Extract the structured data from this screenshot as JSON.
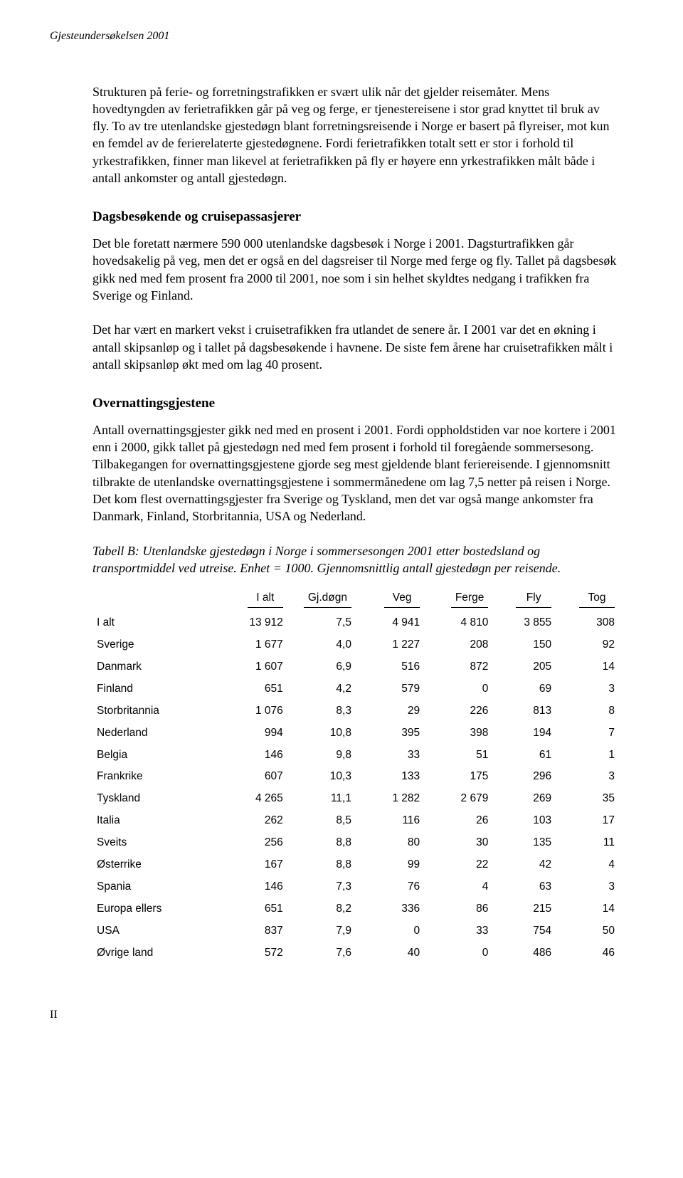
{
  "header": {
    "title": "Gjesteundersøkelsen 2001"
  },
  "body": {
    "p1": "Strukturen på ferie- og forretningstrafikken er svært ulik når det gjelder reisemåter. Mens hovedtyngden av ferietrafikken går på veg og ferge, er tjenestereisene i stor grad knyttet til bruk av fly. To av tre utenlandske gjestedøgn blant forretningsreisende i Norge er basert på flyreiser, mot kun en femdel av de ferierelaterte gjestedøgnene. Fordi ferietrafikken totalt sett er stor i forhold til yrkestrafikken, finner man likevel at ferietrafikken på fly er høyere enn yrkestrafikken målt både i antall ankomster og antall gjestedøgn.",
    "h1": "Dagsbesøkende og cruisepassasjerer",
    "p2": "Det ble foretatt nærmere 590 000 utenlandske dagsbesøk i Norge i 2001. Dagsturtrafikken går hovedsakelig på veg, men det er også en del dagsreiser til Norge med ferge og fly. Tallet på dagsbesøk gikk ned med fem prosent fra 2000 til 2001, noe som i sin helhet skyldtes nedgang i trafikken fra Sverige og Finland.",
    "p3": "Det har vært en markert vekst i cruisetrafikken fra utlandet de senere år. I 2001 var det en økning i antall skipsanløp og i tallet på dagsbesøkende i havnene. De siste fem årene har cruisetrafikken målt i antall skipsanløp økt med om lag 40 prosent.",
    "h2": "Overnattingsgjestene",
    "p4": "Antall overnattingsgjester gikk ned med en prosent i 2001. Fordi oppholdstiden var noe kortere i 2001 enn i 2000, gikk tallet på gjestedøgn ned med fem prosent i forhold til foregående sommersesong. Tilbakegangen for overnattingsgjestene gjorde seg mest gjeldende blant feriereisende. I gjennomsnitt tilbrakte de utenlandske overnattingsgjestene i sommermånedene om lag 7,5 netter på reisen i Norge. Det kom flest overnattingsgjester fra Sverige og Tyskland, men det var også mange ankomster fra Danmark, Finland, Storbritannia, USA og Nederland.",
    "caption": "Tabell B: Utenlandske gjestedøgn i Norge i sommersesongen 2001 etter bostedsland og transportmiddel ved utreise. Enhet = 1000. Gjennomsnittlig antall gjestedøgn per reisende."
  },
  "table": {
    "columns": [
      "",
      "I alt",
      "Gj.døgn",
      "Veg",
      "Ferge",
      "Fly",
      "Tog"
    ],
    "col_widths": [
      "24%",
      "13%",
      "13%",
      "13%",
      "13%",
      "12%",
      "12%"
    ],
    "rows": [
      [
        "I alt",
        "13 912",
        "7,5",
        "4 941",
        "4 810",
        "3 855",
        "308"
      ],
      [
        "Sverige",
        "1 677",
        "4,0",
        "1 227",
        "208",
        "150",
        "92"
      ],
      [
        "Danmark",
        "1 607",
        "6,9",
        "516",
        "872",
        "205",
        "14"
      ],
      [
        "Finland",
        "651",
        "4,2",
        "579",
        "0",
        "69",
        "3"
      ],
      [
        "Storbritannia",
        "1 076",
        "8,3",
        "29",
        "226",
        "813",
        "8"
      ],
      [
        "Nederland",
        "994",
        "10,8",
        "395",
        "398",
        "194",
        "7"
      ],
      [
        "Belgia",
        "146",
        "9,8",
        "33",
        "51",
        "61",
        "1"
      ],
      [
        "Frankrike",
        "607",
        "10,3",
        "133",
        "175",
        "296",
        "3"
      ],
      [
        "Tyskland",
        "4 265",
        "11,1",
        "1 282",
        "2 679",
        "269",
        "35"
      ],
      [
        "Italia",
        "262",
        "8,5",
        "116",
        "26",
        "103",
        "17"
      ],
      [
        "Sveits",
        "256",
        "8,8",
        "80",
        "30",
        "135",
        "11"
      ],
      [
        "Østerrike",
        "167",
        "8,8",
        "99",
        "22",
        "42",
        "4"
      ],
      [
        "Spania",
        "146",
        "7,3",
        "76",
        "4",
        "63",
        "3"
      ],
      [
        "Europa ellers",
        "651",
        "8,2",
        "336",
        "86",
        "215",
        "14"
      ],
      [
        "USA",
        "837",
        "7,9",
        "0",
        "33",
        "754",
        "50"
      ],
      [
        "Øvrige land",
        "572",
        "7,6",
        "40",
        "0",
        "486",
        "46"
      ]
    ],
    "font_family": "Arial",
    "header_underline_color": "#000000"
  },
  "footer": {
    "page": "II"
  }
}
